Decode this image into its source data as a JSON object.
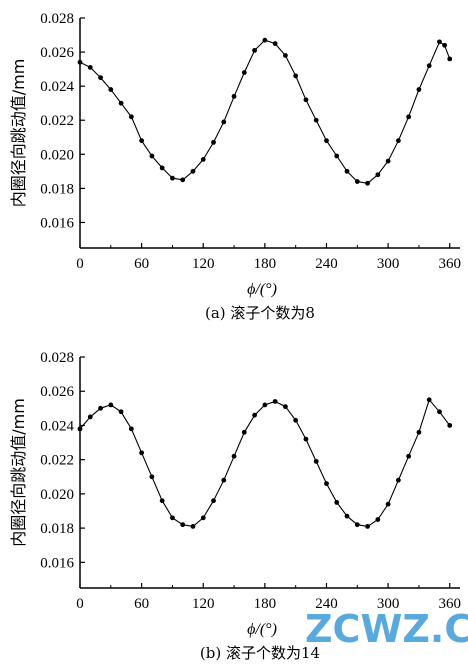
{
  "watermark": "ZCWZ.COM",
  "chart_data": [
    {
      "type": "scatter",
      "caption": "(a) 滚子个数为8",
      "xlabel": "ϕ/(°)",
      "ylabel": "内圈径向跳动值/mm",
      "xlim": [
        0,
        370
      ],
      "ylim": [
        0.0145,
        0.028
      ],
      "xticks": [
        0,
        60,
        120,
        180,
        240,
        300,
        360
      ],
      "xtick_labels": [
        "0",
        "60",
        "120",
        "180",
        "240",
        "300",
        "360"
      ],
      "yticks": [
        0.016,
        0.018,
        0.02,
        0.022,
        0.024,
        0.026,
        0.028
      ],
      "ytick_labels": [
        "0.016",
        "0.018",
        "0.020",
        "0.022",
        "0.024",
        "0.026",
        "0.028"
      ],
      "grid": false,
      "x": [
        0,
        10,
        20,
        30,
        40,
        50,
        60,
        70,
        80,
        90,
        100,
        110,
        120,
        130,
        140,
        150,
        160,
        170,
        180,
        190,
        200,
        210,
        220,
        230,
        240,
        250,
        260,
        270,
        280,
        290,
        300,
        310,
        320,
        330,
        340,
        350,
        355,
        360
      ],
      "y": [
        0.0254,
        0.0251,
        0.0245,
        0.0238,
        0.023,
        0.0222,
        0.0208,
        0.0199,
        0.0192,
        0.0186,
        0.0185,
        0.019,
        0.0197,
        0.0207,
        0.0219,
        0.0234,
        0.0248,
        0.0261,
        0.0267,
        0.0265,
        0.0258,
        0.0246,
        0.0232,
        0.022,
        0.0208,
        0.0199,
        0.019,
        0.0184,
        0.0183,
        0.0188,
        0.0196,
        0.0208,
        0.0222,
        0.0238,
        0.0252,
        0.0266,
        0.0264,
        0.0256
      ]
    },
    {
      "type": "scatter",
      "caption": "(b) 滚子个数为14",
      "xlabel": "ϕ/(°)",
      "ylabel": "内圈径向跳动值/mm",
      "xlim": [
        0,
        370
      ],
      "ylim": [
        0.0145,
        0.028
      ],
      "xticks": [
        0,
        60,
        120,
        180,
        240,
        300,
        360
      ],
      "xtick_labels": [
        "0",
        "60",
        "120",
        "180",
        "240",
        "300",
        "360"
      ],
      "yticks": [
        0.016,
        0.018,
        0.02,
        0.022,
        0.024,
        0.026,
        0.028
      ],
      "ytick_labels": [
        "0.016",
        "0.018",
        "0.020",
        "0.022",
        "0.024",
        "0.026",
        "0.028"
      ],
      "grid": false,
      "x": [
        0,
        10,
        20,
        30,
        40,
        50,
        60,
        70,
        80,
        90,
        100,
        110,
        120,
        130,
        140,
        150,
        160,
        170,
        180,
        190,
        200,
        210,
        220,
        230,
        240,
        250,
        260,
        270,
        280,
        290,
        300,
        310,
        320,
        330,
        340,
        350,
        360
      ],
      "y": [
        0.0238,
        0.0245,
        0.025,
        0.0252,
        0.0248,
        0.0238,
        0.0224,
        0.021,
        0.0196,
        0.0186,
        0.0182,
        0.0181,
        0.0186,
        0.0196,
        0.0208,
        0.0222,
        0.0236,
        0.0246,
        0.0252,
        0.0254,
        0.0251,
        0.0243,
        0.0232,
        0.0219,
        0.0206,
        0.0195,
        0.0187,
        0.0182,
        0.0181,
        0.0185,
        0.0194,
        0.0208,
        0.0222,
        0.0236,
        0.0255,
        0.0248,
        0.024
      ]
    }
  ]
}
